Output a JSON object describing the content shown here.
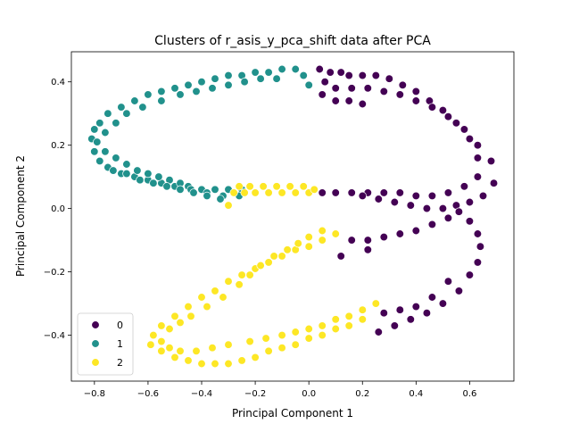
{
  "chart_data": {
    "type": "scatter",
    "title": "Clusters of r_asis_y_pca_shift data after PCA",
    "xlabel": "Principal Component 1",
    "ylabel": "Principal Component 2",
    "xlim": [
      -0.886,
      0.765
    ],
    "ylim": [
      -0.545,
      0.495
    ],
    "xticks": [
      -0.8,
      -0.6,
      -0.4,
      -0.2,
      0.0,
      0.2,
      0.4,
      0.6
    ],
    "xtick_labels": [
      "−0.8",
      "−0.6",
      "−0.4",
      "−0.2",
      "0.0",
      "0.2",
      "0.4",
      "0.6"
    ],
    "yticks": [
      -0.4,
      -0.2,
      0.0,
      0.2,
      0.4
    ],
    "ytick_labels": [
      "−0.4",
      "−0.2",
      "0.0",
      "0.2",
      "0.4"
    ],
    "grid": false,
    "legend": {
      "position": "lower-left",
      "entries": [
        "0",
        "1",
        "2"
      ]
    },
    "colors": {
      "0": "#440154",
      "1": "#21918c",
      "2": "#fde725"
    },
    "series": [
      {
        "name": "0",
        "points": [
          [
            0.04,
            0.44
          ],
          [
            0.08,
            0.43
          ],
          [
            0.12,
            0.43
          ],
          [
            0.15,
            0.42
          ],
          [
            0.2,
            0.42
          ],
          [
            0.25,
            0.42
          ],
          [
            0.3,
            0.41
          ],
          [
            0.35,
            0.39
          ],
          [
            0.4,
            0.37
          ],
          [
            0.45,
            0.34
          ],
          [
            0.5,
            0.31
          ],
          [
            0.55,
            0.27
          ],
          [
            0.6,
            0.22
          ],
          [
            0.63,
            0.16
          ],
          [
            0.63,
            0.1
          ],
          [
            0.58,
            0.07
          ],
          [
            0.52,
            0.05
          ],
          [
            0.46,
            0.04
          ],
          [
            0.4,
            0.04
          ],
          [
            0.34,
            0.05
          ],
          [
            0.28,
            0.05
          ],
          [
            0.22,
            0.05
          ],
          [
            0.16,
            0.05
          ],
          [
            0.1,
            0.05
          ],
          [
            0.05,
            0.05
          ],
          [
            0.06,
            0.4
          ],
          [
            0.1,
            0.38
          ],
          [
            0.16,
            0.38
          ],
          [
            0.22,
            0.38
          ],
          [
            0.28,
            0.37
          ],
          [
            0.34,
            0.36
          ],
          [
            0.4,
            0.34
          ],
          [
            0.46,
            0.32
          ],
          [
            0.52,
            0.29
          ],
          [
            0.58,
            0.25
          ],
          [
            0.63,
            0.2
          ],
          [
            0.68,
            0.15
          ],
          [
            0.69,
            0.08
          ],
          [
            0.65,
            0.04
          ],
          [
            0.6,
            0.02
          ],
          [
            0.55,
            0.01
          ],
          [
            0.5,
            0.0
          ],
          [
            0.44,
            0.0
          ],
          [
            0.38,
            0.01
          ],
          [
            0.32,
            0.02
          ],
          [
            0.26,
            0.03
          ],
          [
            0.2,
            0.04
          ],
          [
            0.05,
            0.36
          ],
          [
            0.1,
            0.34
          ],
          [
            0.15,
            0.34
          ],
          [
            0.2,
            0.33
          ],
          [
            0.56,
            -0.01
          ],
          [
            0.6,
            -0.04
          ],
          [
            0.63,
            -0.08
          ],
          [
            0.64,
            -0.12
          ],
          [
            0.63,
            -0.17
          ],
          [
            0.6,
            -0.21
          ],
          [
            0.56,
            -0.26
          ],
          [
            0.5,
            -0.3
          ],
          [
            0.44,
            -0.33
          ],
          [
            0.38,
            -0.35
          ],
          [
            0.32,
            -0.37
          ],
          [
            0.26,
            -0.39
          ],
          [
            0.52,
            -0.03
          ],
          [
            0.46,
            -0.05
          ],
          [
            0.4,
            -0.07
          ],
          [
            0.34,
            -0.08
          ],
          [
            0.28,
            -0.09
          ],
          [
            0.22,
            -0.1
          ],
          [
            0.16,
            -0.1
          ],
          [
            0.12,
            -0.15
          ],
          [
            0.22,
            -0.13
          ],
          [
            0.52,
            -0.23
          ],
          [
            0.46,
            -0.28
          ],
          [
            0.4,
            -0.31
          ],
          [
            0.34,
            -0.32
          ],
          [
            0.28,
            -0.33
          ]
        ]
      },
      {
        "name": "1",
        "points": [
          [
            -0.81,
            0.22
          ],
          [
            -0.8,
            0.25
          ],
          [
            -0.78,
            0.27
          ],
          [
            -0.75,
            0.3
          ],
          [
            -0.7,
            0.32
          ],
          [
            -0.65,
            0.34
          ],
          [
            -0.6,
            0.36
          ],
          [
            -0.55,
            0.37
          ],
          [
            -0.5,
            0.38
          ],
          [
            -0.45,
            0.39
          ],
          [
            -0.4,
            0.4
          ],
          [
            -0.35,
            0.41
          ],
          [
            -0.3,
            0.42
          ],
          [
            -0.25,
            0.42
          ],
          [
            -0.2,
            0.43
          ],
          [
            -0.15,
            0.43
          ],
          [
            -0.1,
            0.44
          ],
          [
            -0.05,
            0.44
          ],
          [
            -0.02,
            0.42
          ],
          [
            0.0,
            0.39
          ],
          [
            -0.8,
            0.18
          ],
          [
            -0.78,
            0.15
          ],
          [
            -0.75,
            0.13
          ],
          [
            -0.7,
            0.11
          ],
          [
            -0.65,
            0.1
          ],
          [
            -0.6,
            0.09
          ],
          [
            -0.55,
            0.08
          ],
          [
            -0.5,
            0.07
          ],
          [
            -0.45,
            0.07
          ],
          [
            -0.4,
            0.06
          ],
          [
            -0.35,
            0.06
          ],
          [
            -0.3,
            0.06
          ],
          [
            -0.25,
            0.06
          ],
          [
            -0.79,
            0.21
          ],
          [
            -0.76,
            0.24
          ],
          [
            -0.72,
            0.27
          ],
          [
            -0.68,
            0.3
          ],
          [
            -0.62,
            0.32
          ],
          [
            -0.55,
            0.34
          ],
          [
            -0.48,
            0.36
          ],
          [
            -0.42,
            0.37
          ],
          [
            -0.36,
            0.38
          ],
          [
            -0.3,
            0.39
          ],
          [
            -0.24,
            0.4
          ],
          [
            -0.18,
            0.41
          ],
          [
            -0.12,
            0.41
          ],
          [
            -0.76,
            0.18
          ],
          [
            -0.72,
            0.16
          ],
          [
            -0.68,
            0.14
          ],
          [
            -0.64,
            0.12
          ],
          [
            -0.6,
            0.11
          ],
          [
            -0.56,
            0.1
          ],
          [
            -0.52,
            0.09
          ],
          [
            -0.48,
            0.08
          ],
          [
            -0.44,
            0.06
          ],
          [
            -0.38,
            0.05
          ],
          [
            -0.32,
            0.04
          ],
          [
            -0.26,
            0.04
          ],
          [
            -0.73,
            0.12
          ],
          [
            -0.68,
            0.11
          ],
          [
            -0.63,
            0.09
          ],
          [
            -0.58,
            0.08
          ],
          [
            -0.53,
            0.07
          ],
          [
            -0.48,
            0.06
          ],
          [
            -0.43,
            0.05
          ],
          [
            -0.38,
            0.04
          ],
          [
            -0.33,
            0.03
          ]
        ]
      },
      {
        "name": "2",
        "points": [
          [
            -0.28,
            0.05
          ],
          [
            -0.24,
            0.05
          ],
          [
            -0.2,
            0.05
          ],
          [
            -0.15,
            0.05
          ],
          [
            -0.1,
            0.05
          ],
          [
            -0.05,
            0.05
          ],
          [
            0.0,
            0.05
          ],
          [
            -0.26,
            0.07
          ],
          [
            -0.22,
            0.07
          ],
          [
            -0.17,
            0.07
          ],
          [
            -0.12,
            0.07
          ],
          [
            -0.07,
            0.07
          ],
          [
            -0.02,
            0.07
          ],
          [
            0.02,
            0.06
          ],
          [
            -0.3,
            0.01
          ],
          [
            0.05,
            -0.1
          ],
          [
            0.0,
            -0.12
          ],
          [
            -0.05,
            -0.13
          ],
          [
            -0.1,
            -0.15
          ],
          [
            -0.15,
            -0.17
          ],
          [
            -0.2,
            -0.19
          ],
          [
            -0.25,
            -0.21
          ],
          [
            -0.3,
            -0.23
          ],
          [
            -0.35,
            -0.26
          ],
          [
            -0.4,
            -0.28
          ],
          [
            -0.45,
            -0.31
          ],
          [
            -0.5,
            -0.34
          ],
          [
            -0.55,
            -0.37
          ],
          [
            -0.58,
            -0.4
          ],
          [
            -0.59,
            -0.43
          ],
          [
            -0.55,
            -0.45
          ],
          [
            -0.5,
            -0.47
          ],
          [
            -0.45,
            -0.48
          ],
          [
            -0.4,
            -0.49
          ],
          [
            -0.35,
            -0.49
          ],
          [
            -0.3,
            -0.49
          ],
          [
            -0.25,
            -0.48
          ],
          [
            -0.2,
            -0.47
          ],
          [
            0.1,
            -0.08
          ],
          [
            0.05,
            -0.07
          ],
          [
            0.0,
            -0.09
          ],
          [
            -0.04,
            -0.11
          ],
          [
            -0.08,
            -0.13
          ],
          [
            -0.13,
            -0.15
          ],
          [
            -0.18,
            -0.18
          ],
          [
            -0.22,
            -0.21
          ],
          [
            -0.26,
            -0.24
          ],
          [
            -0.32,
            -0.28
          ],
          [
            -0.38,
            -0.31
          ],
          [
            -0.44,
            -0.34
          ],
          [
            -0.48,
            -0.36
          ],
          [
            -0.52,
            -0.38
          ],
          [
            -0.55,
            -0.42
          ],
          [
            -0.52,
            -0.44
          ],
          [
            -0.48,
            -0.45
          ],
          [
            -0.42,
            -0.45
          ],
          [
            -0.36,
            -0.44
          ],
          [
            -0.3,
            -0.43
          ],
          [
            -0.22,
            -0.42
          ],
          [
            -0.16,
            -0.41
          ],
          [
            -0.1,
            -0.4
          ],
          [
            -0.05,
            -0.39
          ],
          [
            0.0,
            -0.38
          ],
          [
            0.05,
            -0.37
          ],
          [
            0.1,
            -0.35
          ],
          [
            0.15,
            -0.34
          ],
          [
            0.2,
            -0.32
          ],
          [
            0.25,
            -0.3
          ],
          [
            -0.15,
            -0.45
          ],
          [
            -0.1,
            -0.44
          ],
          [
            -0.05,
            -0.43
          ],
          [
            0.0,
            -0.41
          ],
          [
            0.05,
            -0.4
          ],
          [
            0.1,
            -0.38
          ],
          [
            0.15,
            -0.37
          ],
          [
            0.2,
            -0.35
          ]
        ]
      }
    ]
  }
}
